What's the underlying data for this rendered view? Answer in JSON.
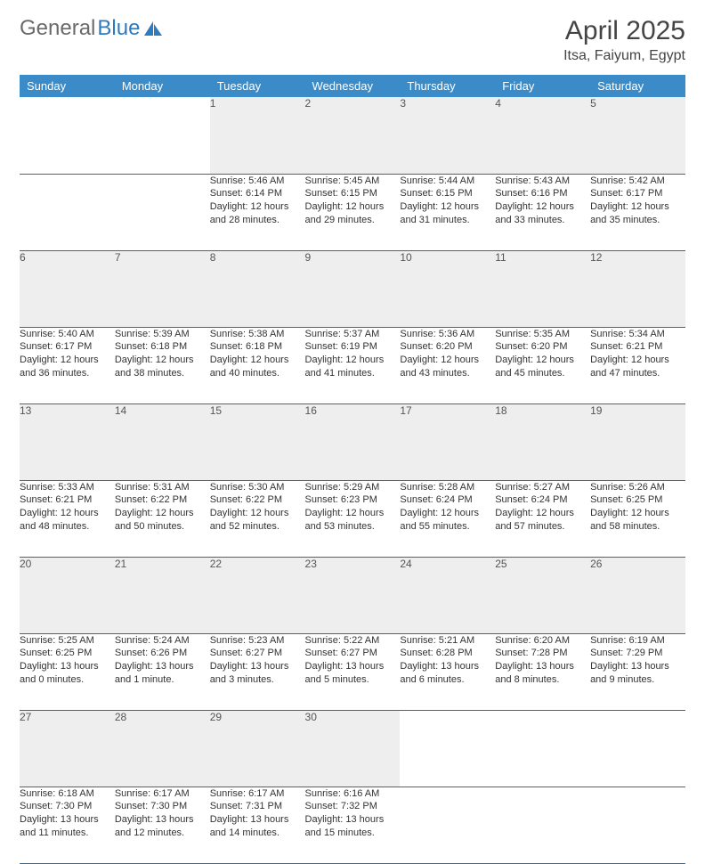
{
  "brand": {
    "word1": "General",
    "word2": "Blue"
  },
  "title": "April 2025",
  "location": "Itsa, Faiyum, Egypt",
  "header_bg": "#3b8bc9",
  "rule_color": "#2f6b9e",
  "daynum_bg": "#eeeeee",
  "weekdays": [
    "Sunday",
    "Monday",
    "Tuesday",
    "Wednesday",
    "Thursday",
    "Friday",
    "Saturday"
  ],
  "weeks": [
    [
      null,
      null,
      {
        "n": "1",
        "sunrise": "5:46 AM",
        "sunset": "6:14 PM",
        "daylight": "12 hours and 28 minutes."
      },
      {
        "n": "2",
        "sunrise": "5:45 AM",
        "sunset": "6:15 PM",
        "daylight": "12 hours and 29 minutes."
      },
      {
        "n": "3",
        "sunrise": "5:44 AM",
        "sunset": "6:15 PM",
        "daylight": "12 hours and 31 minutes."
      },
      {
        "n": "4",
        "sunrise": "5:43 AM",
        "sunset": "6:16 PM",
        "daylight": "12 hours and 33 minutes."
      },
      {
        "n": "5",
        "sunrise": "5:42 AM",
        "sunset": "6:17 PM",
        "daylight": "12 hours and 35 minutes."
      }
    ],
    [
      {
        "n": "6",
        "sunrise": "5:40 AM",
        "sunset": "6:17 PM",
        "daylight": "12 hours and 36 minutes."
      },
      {
        "n": "7",
        "sunrise": "5:39 AM",
        "sunset": "6:18 PM",
        "daylight": "12 hours and 38 minutes."
      },
      {
        "n": "8",
        "sunrise": "5:38 AM",
        "sunset": "6:18 PM",
        "daylight": "12 hours and 40 minutes."
      },
      {
        "n": "9",
        "sunrise": "5:37 AM",
        "sunset": "6:19 PM",
        "daylight": "12 hours and 41 minutes."
      },
      {
        "n": "10",
        "sunrise": "5:36 AM",
        "sunset": "6:20 PM",
        "daylight": "12 hours and 43 minutes."
      },
      {
        "n": "11",
        "sunrise": "5:35 AM",
        "sunset": "6:20 PM",
        "daylight": "12 hours and 45 minutes."
      },
      {
        "n": "12",
        "sunrise": "5:34 AM",
        "sunset": "6:21 PM",
        "daylight": "12 hours and 47 minutes."
      }
    ],
    [
      {
        "n": "13",
        "sunrise": "5:33 AM",
        "sunset": "6:21 PM",
        "daylight": "12 hours and 48 minutes."
      },
      {
        "n": "14",
        "sunrise": "5:31 AM",
        "sunset": "6:22 PM",
        "daylight": "12 hours and 50 minutes."
      },
      {
        "n": "15",
        "sunrise": "5:30 AM",
        "sunset": "6:22 PM",
        "daylight": "12 hours and 52 minutes."
      },
      {
        "n": "16",
        "sunrise": "5:29 AM",
        "sunset": "6:23 PM",
        "daylight": "12 hours and 53 minutes."
      },
      {
        "n": "17",
        "sunrise": "5:28 AM",
        "sunset": "6:24 PM",
        "daylight": "12 hours and 55 minutes."
      },
      {
        "n": "18",
        "sunrise": "5:27 AM",
        "sunset": "6:24 PM",
        "daylight": "12 hours and 57 minutes."
      },
      {
        "n": "19",
        "sunrise": "5:26 AM",
        "sunset": "6:25 PM",
        "daylight": "12 hours and 58 minutes."
      }
    ],
    [
      {
        "n": "20",
        "sunrise": "5:25 AM",
        "sunset": "6:25 PM",
        "daylight": "13 hours and 0 minutes."
      },
      {
        "n": "21",
        "sunrise": "5:24 AM",
        "sunset": "6:26 PM",
        "daylight": "13 hours and 1 minute."
      },
      {
        "n": "22",
        "sunrise": "5:23 AM",
        "sunset": "6:27 PM",
        "daylight": "13 hours and 3 minutes."
      },
      {
        "n": "23",
        "sunrise": "5:22 AM",
        "sunset": "6:27 PM",
        "daylight": "13 hours and 5 minutes."
      },
      {
        "n": "24",
        "sunrise": "5:21 AM",
        "sunset": "6:28 PM",
        "daylight": "13 hours and 6 minutes."
      },
      {
        "n": "25",
        "sunrise": "6:20 AM",
        "sunset": "7:28 PM",
        "daylight": "13 hours and 8 minutes."
      },
      {
        "n": "26",
        "sunrise": "6:19 AM",
        "sunset": "7:29 PM",
        "daylight": "13 hours and 9 minutes."
      }
    ],
    [
      {
        "n": "27",
        "sunrise": "6:18 AM",
        "sunset": "7:30 PM",
        "daylight": "13 hours and 11 minutes."
      },
      {
        "n": "28",
        "sunrise": "6:17 AM",
        "sunset": "7:30 PM",
        "daylight": "13 hours and 12 minutes."
      },
      {
        "n": "29",
        "sunrise": "6:17 AM",
        "sunset": "7:31 PM",
        "daylight": "13 hours and 14 minutes."
      },
      {
        "n": "30",
        "sunrise": "6:16 AM",
        "sunset": "7:32 PM",
        "daylight": "13 hours and 15 minutes."
      },
      null,
      null,
      null
    ]
  ],
  "labels": {
    "sunrise": "Sunrise:",
    "sunset": "Sunset:",
    "daylight": "Daylight:"
  }
}
